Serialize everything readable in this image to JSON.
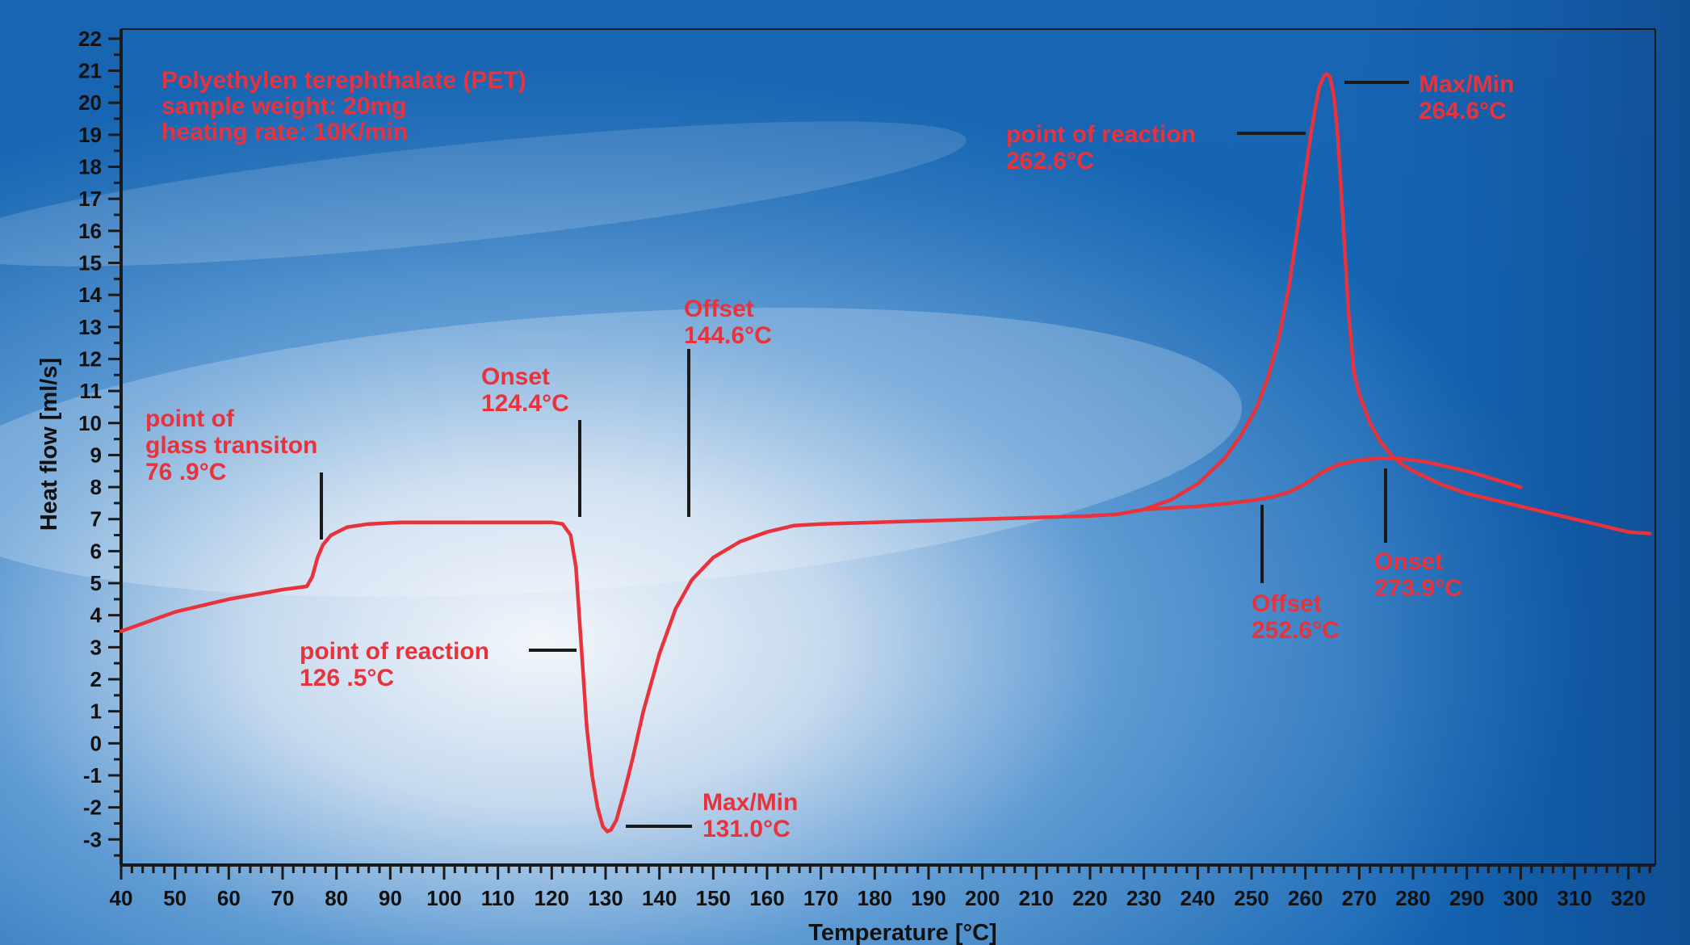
{
  "colors": {
    "curve": "#e8323c",
    "annotation_text": "#e8323c",
    "axis": "#1a1a1a",
    "background_dark": "#0d4f9c",
    "background_light": "#e8f0f8"
  },
  "chart_data": {
    "type": "line",
    "title": "",
    "info_lines": [
      "Polyethylen terephthalate (PET)",
      "sample weight: 20mg",
      "heating rate: 10K/min"
    ],
    "xlabel": "Temperature [°C]",
    "ylabel": "Heat flow [ml/s]",
    "xlim": [
      40,
      325
    ],
    "ylim": [
      -3.8,
      22.3
    ],
    "x_ticks": [
      40,
      50,
      60,
      70,
      80,
      90,
      100,
      110,
      120,
      130,
      140,
      150,
      160,
      170,
      180,
      190,
      200,
      210,
      220,
      230,
      240,
      250,
      260,
      270,
      280,
      290,
      300,
      310,
      320
    ],
    "y_ticks": [
      -3,
      -2,
      -1,
      0,
      1,
      2,
      3,
      4,
      5,
      6,
      7,
      8,
      9,
      10,
      11,
      12,
      13,
      14,
      15,
      16,
      17,
      18,
      19,
      20,
      21,
      22
    ],
    "grid": false,
    "legend": "none",
    "series": [
      {
        "x": [
          40,
          50,
          60,
          70,
          74.5,
          75.5,
          76.5,
          77.5,
          79,
          82,
          86,
          92,
          100,
          110,
          120,
          122,
          123.5,
          124.5,
          125.5,
          126.5,
          127.5,
          128.5,
          129.5,
          130.3,
          131,
          132,
          133.5,
          135,
          137,
          140,
          143,
          146,
          150,
          155,
          160,
          165,
          170,
          180,
          190,
          200,
          210,
          220,
          225,
          230,
          235,
          240,
          245,
          248,
          251,
          253,
          255,
          257,
          259,
          260,
          261,
          262,
          262.6,
          263.5,
          264,
          264.6,
          265.3,
          266,
          267,
          268,
          269,
          270,
          272,
          274,
          276,
          278,
          280,
          285,
          290,
          300,
          310,
          320,
          324
        ],
        "y": [
          3.5,
          4.1,
          4.5,
          4.8,
          4.9,
          5.2,
          5.8,
          6.2,
          6.5,
          6.75,
          6.85,
          6.9,
          6.9,
          6.9,
          6.9,
          6.85,
          6.5,
          5.5,
          3.0,
          0.5,
          -1.0,
          -2.0,
          -2.6,
          -2.75,
          -2.7,
          -2.4,
          -1.5,
          -0.5,
          1.0,
          2.8,
          4.2,
          5.1,
          5.8,
          6.3,
          6.6,
          6.8,
          6.85,
          6.9,
          6.95,
          7.0,
          7.05,
          7.1,
          7.15,
          7.3,
          7.6,
          8.1,
          8.9,
          9.6,
          10.5,
          11.4,
          12.6,
          14.3,
          16.6,
          17.8,
          19.0,
          20.0,
          20.5,
          20.85,
          20.9,
          20.8,
          20.2,
          19.0,
          16.3,
          13.5,
          11.6,
          10.9,
          10.0,
          9.4,
          9.0,
          8.7,
          8.5,
          8.1,
          7.8,
          7.4,
          7.0,
          6.6,
          6.55
        ]
      },
      {
        "x": [
          230,
          240,
          245,
          250,
          254,
          257,
          260,
          263,
          266,
          270,
          274,
          278,
          282,
          286,
          290,
          295,
          300
        ],
        "y": [
          7.3,
          7.4,
          7.48,
          7.58,
          7.7,
          7.85,
          8.1,
          8.45,
          8.7,
          8.85,
          8.9,
          8.88,
          8.8,
          8.65,
          8.5,
          8.25,
          8.0
        ]
      }
    ],
    "annotations": [
      {
        "lines": [
          "point of",
          "glass transiton",
          "76 .9°C"
        ]
      },
      {
        "lines": [
          "Onset",
          "124.4°C"
        ]
      },
      {
        "lines": [
          "Offset",
          "144.6°C"
        ]
      },
      {
        "lines": [
          "point of reaction",
          "126 .5°C"
        ]
      },
      {
        "lines": [
          "Max/Min",
          "131.0°C"
        ]
      },
      {
        "lines": [
          "point of reaction",
          "262.6°C"
        ]
      },
      {
        "lines": [
          "Max/Min",
          "264.6°C"
        ]
      },
      {
        "lines": [
          "Offset",
          "252.6°C"
        ]
      },
      {
        "lines": [
          "Onset",
          "273.9°C"
        ]
      }
    ]
  }
}
